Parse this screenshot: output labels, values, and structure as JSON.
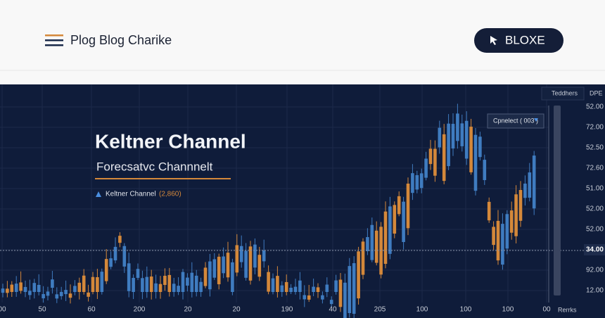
{
  "header": {
    "title": "Plog Blog Charike",
    "button": "BLOXE"
  },
  "chart": {
    "title": "Keltner Channel",
    "subtitle": "Forecsatvc Channnelt",
    "legend": "Keltner Channel",
    "legend_value": "(2,860)",
    "tooltip": "Cpnelect ( 003 )",
    "top_labels": [
      "Teddhers",
      "DPE"
    ],
    "bottom_label": "Rerrks",
    "y_labels": [
      "52.00",
      "72.00",
      "52.50",
      "72.60",
      "51.00",
      "52.00",
      "52.00",
      "34.00",
      "92.00",
      "12.00"
    ],
    "x_labels": [
      "00",
      "50",
      "60",
      "200",
      "20",
      "20",
      "190",
      "40",
      "205",
      "100",
      "100",
      "100",
      "00"
    ]
  }
}
